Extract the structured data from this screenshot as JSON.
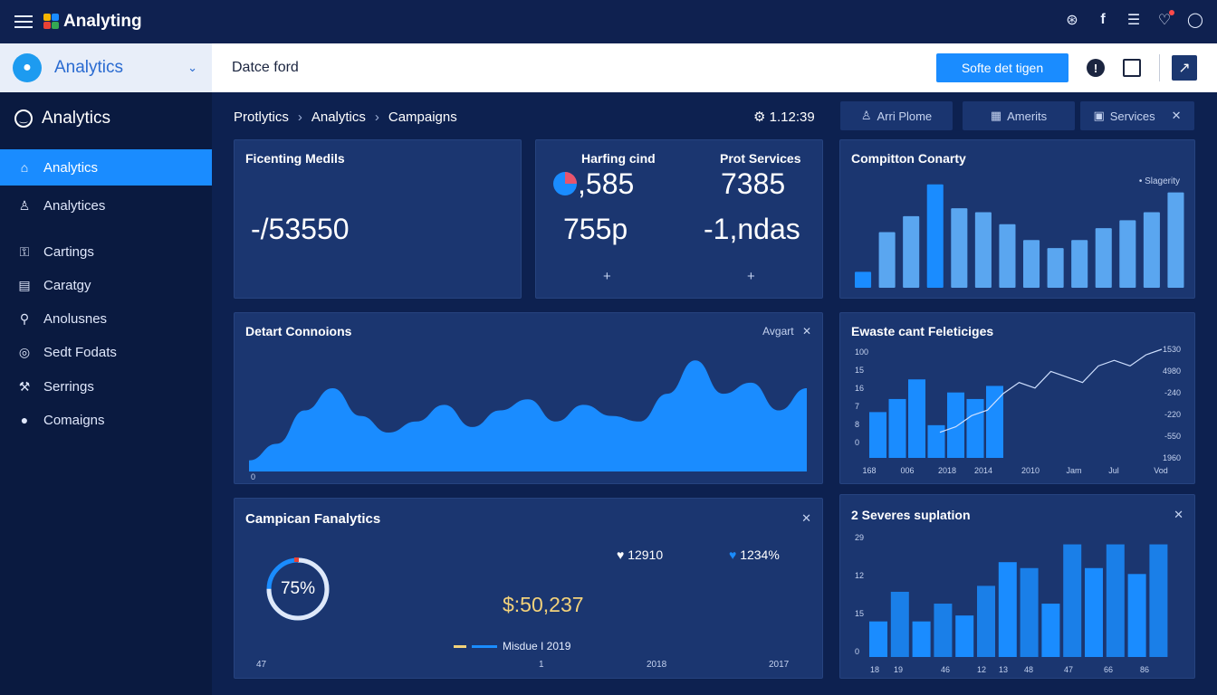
{
  "topbar": {
    "app_title": "Analyting",
    "icons": [
      "fingerprint-icon",
      "facebook-icon",
      "list-icon",
      "heart-icon",
      "user-icon"
    ]
  },
  "account": {
    "label": "Analytics"
  },
  "toolbar": {
    "doc_label": "Datce ford",
    "primary_button": "Softe det tigen"
  },
  "sidebar": {
    "title": "Analytics",
    "items": [
      {
        "label": "Analytics",
        "icon": "home-icon"
      },
      {
        "label": "Analytices",
        "icon": "user-icon"
      },
      {
        "label": "Cartings",
        "icon": "lock-icon"
      },
      {
        "label": "Caratgy",
        "icon": "document-icon"
      },
      {
        "label": "Anolusnes",
        "icon": "pin-icon"
      },
      {
        "label": "Sedt Fodats",
        "icon": "globe-icon"
      },
      {
        "label": "Serrings",
        "icon": "wrench-icon"
      },
      {
        "label": "Comaigns",
        "icon": "person-icon"
      }
    ]
  },
  "breadcrumb": [
    "Protlytics",
    "Analytics",
    "Campaigns"
  ],
  "clock": "1.12:39",
  "tabs": [
    {
      "label": "Arri Plome"
    },
    {
      "label": "Amerits"
    },
    {
      "label": "Services"
    }
  ],
  "card1": {
    "title": "Ficenting Medils",
    "value": "-/53550"
  },
  "card2": {
    "col1_title": "Harfing cind",
    "col1_value": ",585",
    "col1_sub": "755p",
    "col2_title": "Prot Services",
    "col2_value": "7385",
    "col2_sub": "-1,ndas"
  },
  "card3": {
    "title": "Compitton Conarty",
    "legend": "Slagerity",
    "chart_data": {
      "type": "bar",
      "values": [
        4,
        14,
        18,
        26,
        20,
        19,
        16,
        12,
        10,
        12,
        15,
        17,
        19,
        24
      ]
    }
  },
  "card4": {
    "title": "Detart Connoions",
    "action": "Avgart",
    "axis_label": "0",
    "chart_data": {
      "type": "area",
      "values": [
        2,
        5,
        11,
        15,
        10,
        7,
        9,
        12,
        8,
        11,
        13,
        9,
        12,
        10,
        9,
        14,
        20,
        14,
        16,
        11,
        15
      ]
    }
  },
  "card5": {
    "title": "Ewaste cant Feleticiges",
    "y_left": [
      "100",
      "15",
      "16",
      "7",
      "8",
      "0"
    ],
    "y_right": [
      "1530",
      "4980",
      "-240",
      "-220",
      "-550",
      "1960"
    ],
    "x_labels": [
      "168",
      "006",
      "2018",
      "2014",
      "2010",
      "Jam",
      "Jul",
      "Vod"
    ],
    "chart_data": {
      "type": "bar",
      "bars": [
        7,
        9,
        12,
        5,
        10,
        9,
        11
      ],
      "line": [
        3,
        4,
        6,
        7,
        10,
        12,
        11,
        14,
        13,
        12,
        15,
        16,
        15,
        17,
        18
      ]
    }
  },
  "card6": {
    "title": "Campican Fanalytics",
    "donut": "75%",
    "donut_value": 0.75,
    "stat1": "12910",
    "stat2": "1234%",
    "amount": "$:50,237",
    "legend": "Misdue I 2019",
    "x_labels": [
      "47",
      "1",
      "2018",
      "2017"
    ]
  },
  "card7": {
    "title": "2 Severes suplation",
    "y_labels": [
      "29",
      "12",
      "15",
      "0"
    ],
    "x_labels": [
      "18",
      "19",
      "46",
      "12",
      "13",
      "48",
      "47",
      "66",
      "86"
    ],
    "chart_data": {
      "type": "bar",
      "values": [
        6,
        11,
        6,
        9,
        7,
        12,
        16,
        15,
        9,
        19,
        15,
        19,
        14,
        19
      ]
    }
  },
  "colors": {
    "accent": "#1a8cff",
    "bar": "#1a8cff",
    "bar_light": "#5aa6f0",
    "card_bg": "#1b3670"
  }
}
